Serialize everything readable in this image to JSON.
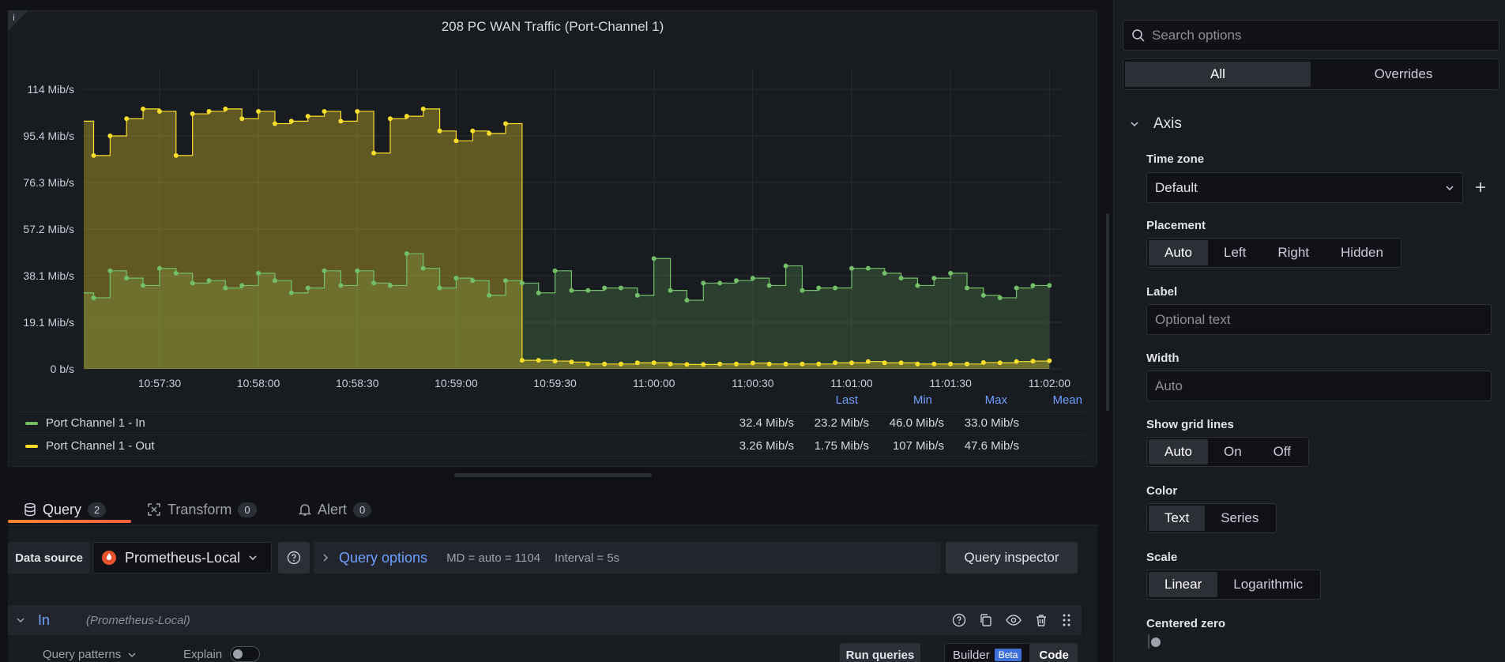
{
  "panel": {
    "title": "208 PC WAN Traffic (Port-Channel 1)",
    "info_glyph": "i"
  },
  "chart_data": {
    "type": "line",
    "title": "208 PC WAN Traffic (Port-Channel 1)",
    "y_ticks": [
      "114 Mib/s",
      "95.4 Mib/s",
      "76.3 Mib/s",
      "57.2 Mib/s",
      "38.1 Mib/s",
      "19.1 Mib/s",
      "0 b/s"
    ],
    "x_ticks": [
      "10:57:30",
      "10:58:00",
      "10:58:30",
      "10:59:00",
      "10:59:30",
      "11:00:00",
      "11:00:30",
      "11:01:00",
      "11:01:30",
      "11:02:00"
    ],
    "ylim": [
      0,
      114
    ],
    "xlim": [
      -23,
      274
    ],
    "x_tick_positions": [
      0,
      30,
      60,
      90,
      120,
      150,
      180,
      210,
      240,
      270
    ],
    "grid": true,
    "step": true,
    "series": [
      {
        "name": "Port Channel 1 - In",
        "color": "#73bf69",
        "x": [
          -23,
          -20,
          -15,
          -10,
          -5,
          0,
          5,
          10,
          15,
          20,
          25,
          30,
          35,
          40,
          45,
          50,
          55,
          60,
          65,
          70,
          75,
          80,
          85,
          90,
          95,
          100,
          105,
          110,
          115,
          120,
          125,
          130,
          135,
          140,
          145,
          150,
          155,
          160,
          165,
          170,
          175,
          180,
          185,
          190,
          195,
          200,
          205,
          210,
          215,
          220,
          225,
          230,
          235,
          240,
          245,
          250,
          255,
          260,
          265,
          270
        ],
        "values": [
          31,
          29,
          40,
          37,
          34,
          41,
          39,
          35,
          36,
          33,
          34,
          39,
          36,
          31,
          33,
          40,
          34,
          40,
          35,
          34,
          47,
          41,
          33,
          37,
          36,
          30,
          36,
          35,
          31,
          40,
          32,
          32,
          33,
          33,
          30,
          45,
          32,
          28,
          35,
          35,
          36,
          37,
          34,
          42,
          32,
          33,
          33,
          41,
          41,
          39,
          37,
          34,
          37,
          39,
          33,
          30,
          29,
          33,
          34,
          34
        ]
      },
      {
        "name": "Port Channel 1 - Out",
        "color": "#fade2a",
        "x": [
          -23,
          -20,
          -15,
          -10,
          -5,
          0,
          5,
          10,
          15,
          20,
          25,
          30,
          35,
          40,
          45,
          50,
          55,
          60,
          65,
          70,
          75,
          80,
          85,
          90,
          95,
          100,
          105,
          110,
          115,
          120,
          125,
          130,
          135,
          140,
          145,
          150,
          155,
          160,
          165,
          170,
          175,
          180,
          185,
          190,
          195,
          200,
          205,
          210,
          215,
          220,
          225,
          230,
          235,
          240,
          245,
          250,
          255,
          260,
          265,
          270
        ],
        "values": [
          101,
          87,
          95,
          102,
          106,
          105,
          87,
          104,
          105,
          106,
          102,
          105,
          100,
          101,
          103,
          105,
          101,
          105,
          88,
          102,
          103,
          106,
          97,
          93,
          97,
          96,
          100,
          3.5,
          3.5,
          3.2,
          2.8,
          2,
          2,
          2,
          2.5,
          2.5,
          2,
          1.8,
          1.8,
          2,
          2,
          2.4,
          2,
          2,
          2,
          2,
          2.5,
          2.5,
          3,
          2.5,
          2.5,
          2,
          2,
          2,
          2,
          2.6,
          2.5,
          3,
          3.2,
          3.3
        ]
      }
    ],
    "legend": {
      "placement": "bottom",
      "headers": {
        "last": "Last",
        "min": "Min",
        "max": "Max",
        "mean": "Mean"
      },
      "rows": [
        {
          "name": "Port Channel 1 - In",
          "color": "#73bf69",
          "last": "32.4 Mib/s",
          "min": "23.2 Mib/s",
          "max": "46.0 Mib/s",
          "mean": "33.0 Mib/s"
        },
        {
          "name": "Port Channel 1 - Out",
          "color": "#fade2a",
          "last": "3.26 Mib/s",
          "min": "1.75 Mib/s",
          "max": "107 Mib/s",
          "mean": "47.6 Mib/s"
        }
      ]
    }
  },
  "tabs": [
    {
      "label": "Query",
      "count": "2",
      "icon": "database-icon"
    },
    {
      "label": "Transform",
      "count": "0",
      "icon": "transform-icon"
    },
    {
      "label": "Alert",
      "count": "0",
      "icon": "bell-icon"
    }
  ],
  "query": {
    "ds_label": "Data source",
    "ds_value": "Prometheus-Local",
    "options_label": "Query options",
    "md": "MD = auto = 1104",
    "interval": "Interval = 5s",
    "inspector": "Query inspector",
    "row_name": "In",
    "row_ds": "(Prometheus-Local)",
    "patterns": "Query patterns",
    "explain": "Explain",
    "run": "Run queries",
    "builder": "Builder",
    "beta": "Beta",
    "code": "Code"
  },
  "options": {
    "search_placeholder": "Search options",
    "tabs": [
      "All",
      "Overrides"
    ],
    "section": "Axis",
    "timezone_label": "Time zone",
    "timezone_value": "Default",
    "placement_label": "Placement",
    "placement_opts": [
      "Auto",
      "Left",
      "Right",
      "Hidden"
    ],
    "label_label": "Label",
    "label_placeholder": "Optional text",
    "width_label": "Width",
    "width_placeholder": "Auto",
    "grid_label": "Show grid lines",
    "grid_opts": [
      "Auto",
      "On",
      "Off"
    ],
    "color_label": "Color",
    "color_opts": [
      "Text",
      "Series"
    ],
    "scale_label": "Scale",
    "scale_opts": [
      "Linear",
      "Logarithmic"
    ],
    "centered_label": "Centered zero"
  }
}
